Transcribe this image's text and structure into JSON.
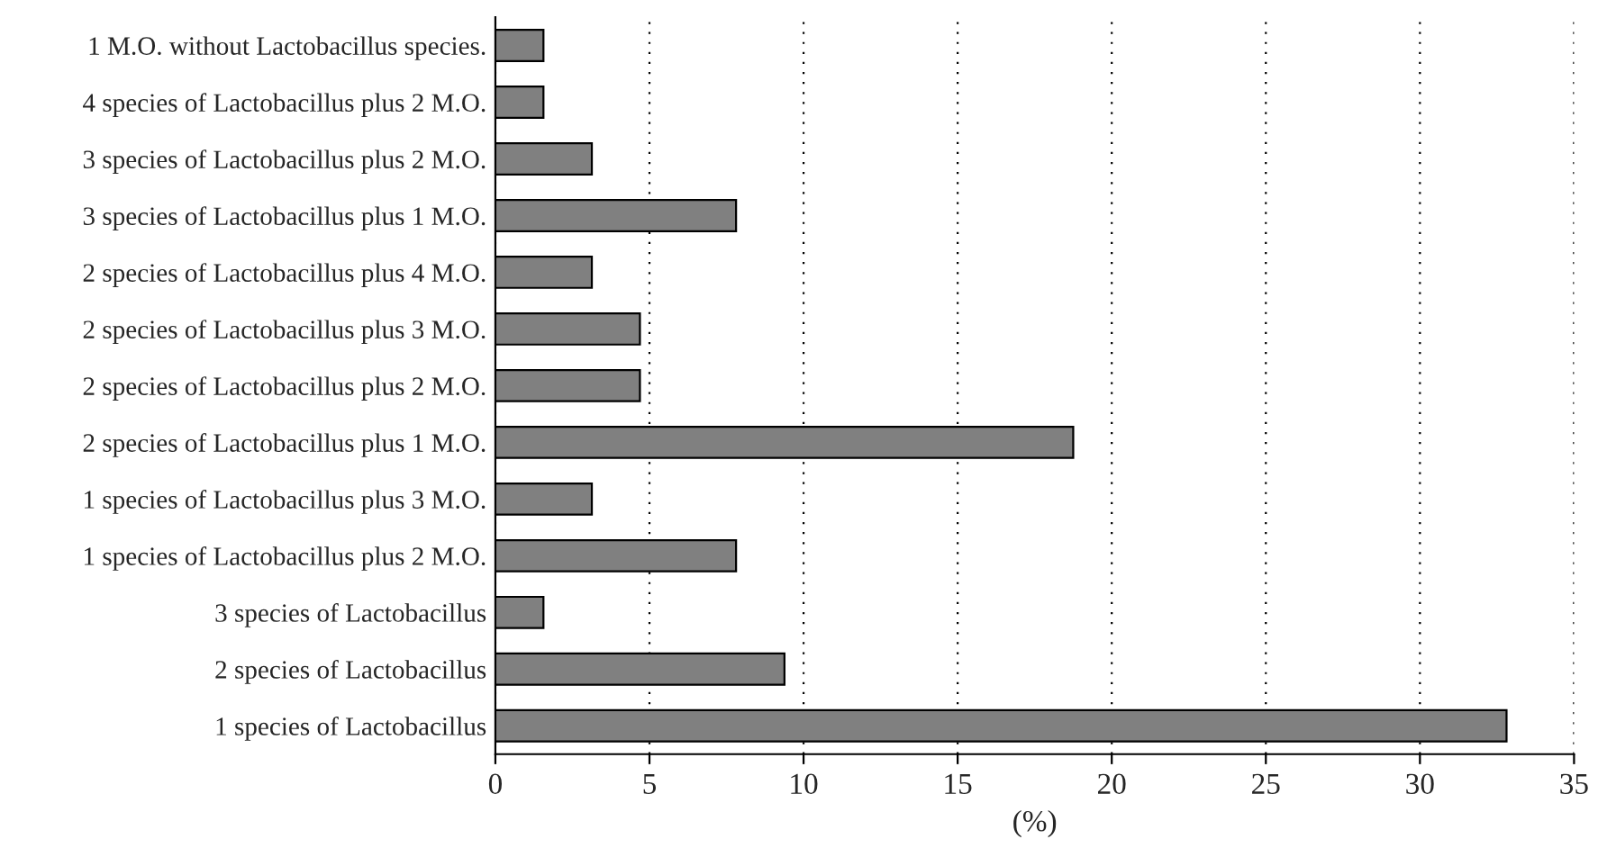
{
  "chart_data": {
    "type": "bar",
    "orientation": "horizontal",
    "xlabel": "(%)",
    "categories": [
      "1 M.O. without Lactobacillus species.",
      "4 species of Lactobacillus plus 2 M.O.",
      "3 species of Lactobacillus plus 2 M.O.",
      "3 species of Lactobacillus plus 1 M.O.",
      "2 species of Lactobacillus plus 4 M.O.",
      "2 species of Lactobacillus plus 3 M.O.",
      "2 species of Lactobacillus plus 2 M.O.",
      "2 species of Lactobacillus plus 1 M.O.",
      "1 species of Lactobacillus plus 3 M.O.",
      "1 species of Lactobacillus plus 2 M.O.",
      "3 species of Lactobacillus",
      "2 species of Lactobacillus",
      "1 species of Lactobacillus"
    ],
    "values": [
      1.56,
      1.56,
      3.13,
      7.81,
      3.13,
      4.69,
      4.69,
      18.75,
      3.13,
      7.81,
      1.56,
      9.38,
      32.81
    ],
    "color": "#808080",
    "xlim": [
      0,
      35
    ],
    "xticks": [
      0,
      5,
      10,
      15,
      20,
      25,
      30,
      35
    ],
    "grid": "x",
    "legend": false
  }
}
